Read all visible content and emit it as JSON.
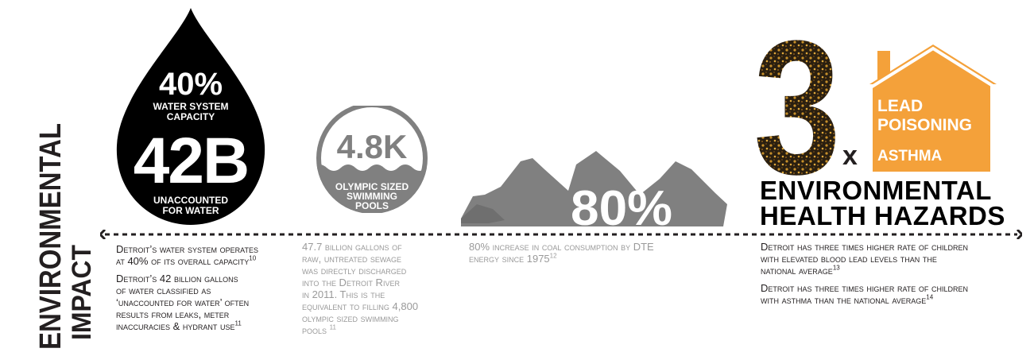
{
  "sidebar": {
    "title_line1": "ENVIRONMENTAL",
    "title_line2": "IMPACT"
  },
  "water": {
    "percent": "40%",
    "percent_caption_line1": "WATER SYSTEM",
    "percent_caption_line2": "CAPACITY",
    "big": "42B",
    "big_caption_line1": "UNACCOUNTED",
    "big_caption_line2": "FOR WATER",
    "note1_line1": "Detroit’s water system operates",
    "note1_line2": "at 40% of its overall capacity",
    "note1_ref": "10",
    "note2_line1": "Detroit’s 42 billion gallons",
    "note2_line2": "of water classified as",
    "note2_line3": "‘unaccounted for water’ often",
    "note2_line4": "results from leaks, meter",
    "note2_line5": "inaccuracies & hydrant use",
    "note2_ref": "11"
  },
  "pools": {
    "value": "4.8K",
    "caption_line1": "OLYMPIC SIZED",
    "caption_line2": "SWIMMING",
    "caption_line3": "POOLS",
    "note_line1": "47.7 billion gallons of",
    "note_line2": "raw, untreated sewage",
    "note_line3": "was directly discharged",
    "note_line4": "into the Detroit River",
    "note_line5": "in 2011. This is the",
    "note_line6": "equivalent to filling 4,800",
    "note_line7": "olympic sized swimming",
    "note_line8": "pools",
    "note_ref": "11"
  },
  "coal": {
    "value": "80%",
    "note_line1": "80% increase in coal consumption by DTE",
    "note_line2": "energy since 1975",
    "note_ref": "12"
  },
  "health": {
    "multiplier": "3",
    "x": "x",
    "house_line1": "LEAD",
    "house_line2": "POISONING",
    "house_line3": "ASTHMA",
    "title_line1": "ENVIRONMENTAL",
    "title_line2": "HEALTH HAZARDS",
    "note1_line1": "Detroit has three times higher rate of children",
    "note1_line2": "with elevated blood lead levels than the",
    "note1_line3": "national average",
    "note1_ref": "13",
    "note2_line1": "Detroit has three times higher rate of children",
    "note2_line2": "with asthma than the national average",
    "note2_ref": "14"
  },
  "colors": {
    "dark": "#231f20",
    "gray": "#808080",
    "light_gray": "#9a9a9a",
    "orange": "#f4a13a",
    "gold": "#c8902a"
  }
}
